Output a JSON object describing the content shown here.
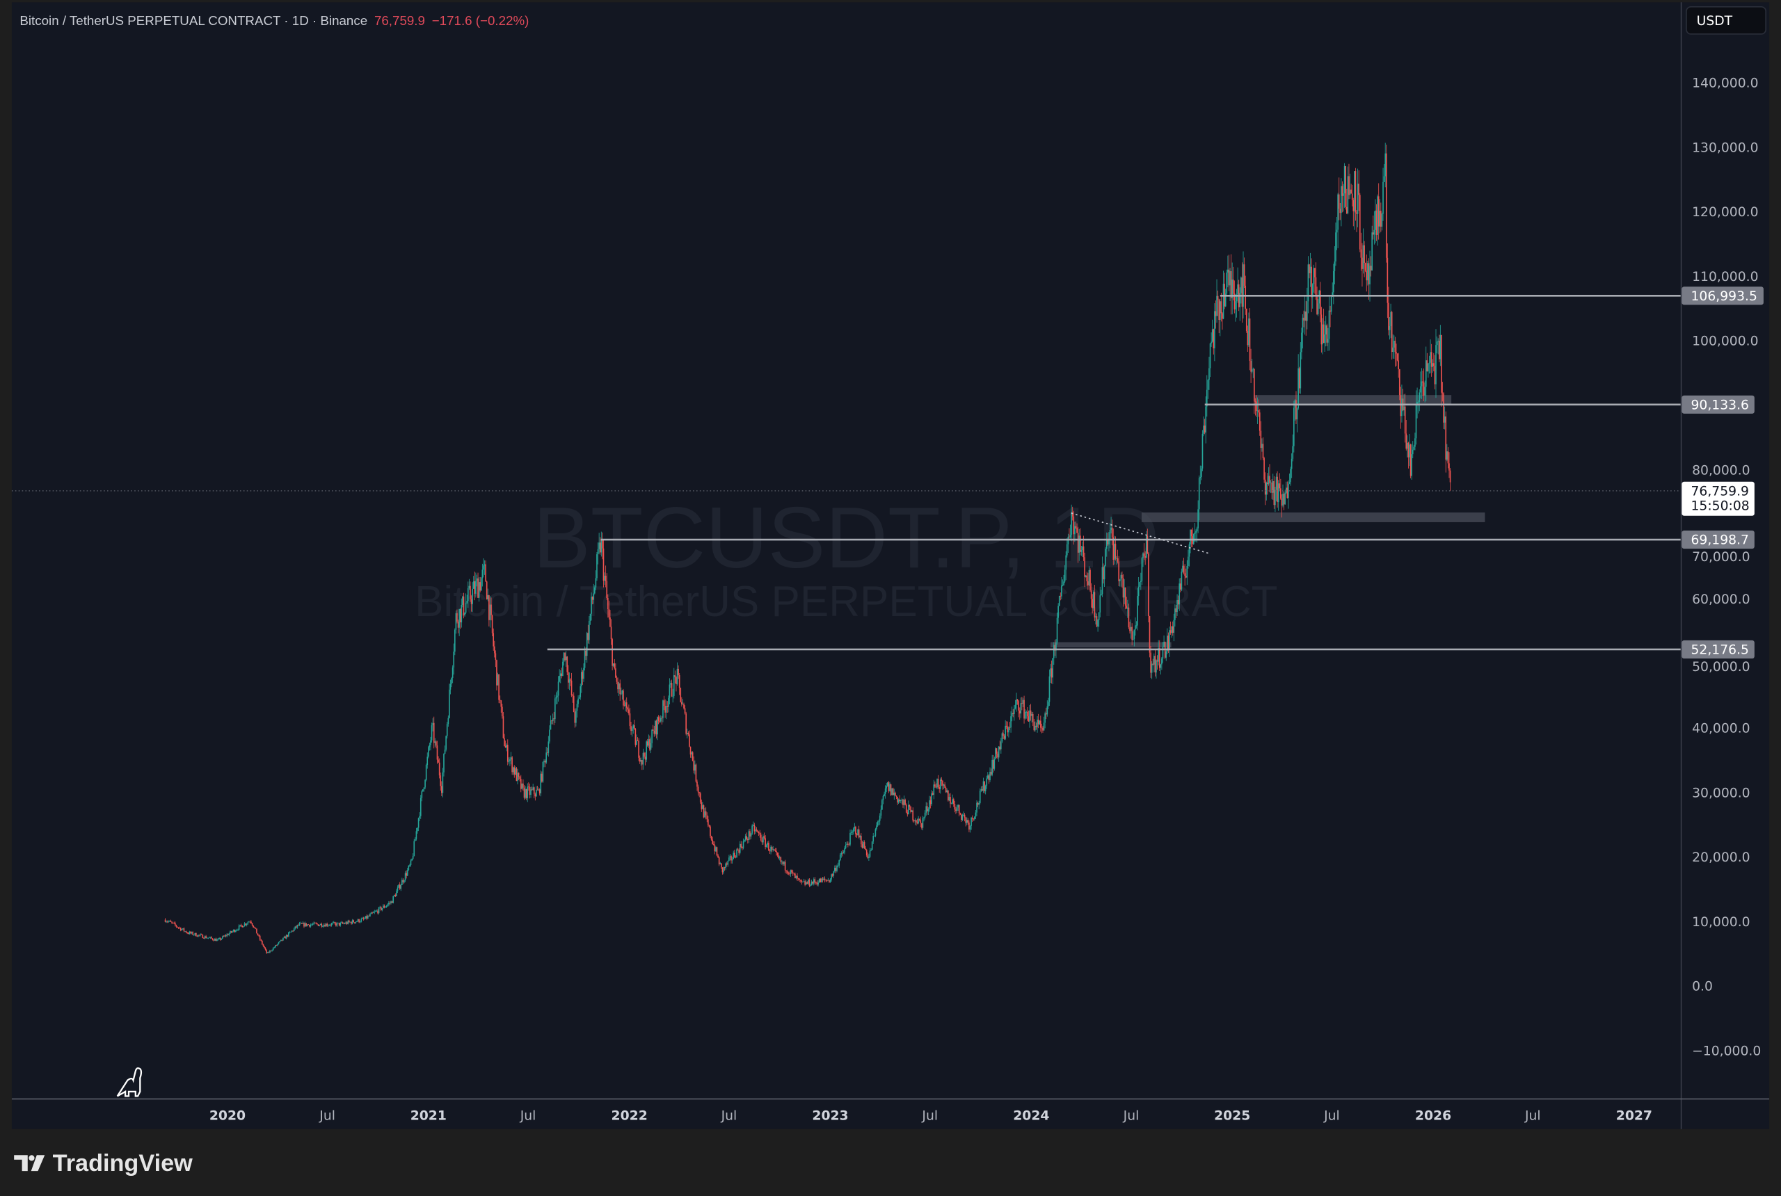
{
  "header": {
    "symbol_description": "Bitcoin / TetherUS PERPETUAL CONTRACT · 1D · Binance",
    "last_price": "76,759.9",
    "change": "−171.6 (−0.22%)"
  },
  "currency_button": "USDT",
  "watermark": {
    "ticker": "BTCUSDT.P, 1D",
    "description": "Bitcoin / TetherUS PERPETUAL CONTRACT"
  },
  "price_labels": {
    "current_price": "76,759.9",
    "countdown": "15:50:08",
    "levels": [
      "106,993.5",
      "90,133.6",
      "69,198.7",
      "52,176.5"
    ]
  },
  "brand": "TradingView",
  "colors": {
    "background": "#131722",
    "up": "#26a69a",
    "down": "#ef5350",
    "level_line": "#a9acb3",
    "level_label": "#787b86",
    "zone": "#4a4e59"
  },
  "icons": {
    "dino": "dinosaur-icon",
    "logo": "tradingview-logo-icon"
  },
  "chart_data": {
    "type": "candlestick",
    "title": "Bitcoin / TetherUS PERPETUAL CONTRACT · 1D · Binance",
    "ylim": [
      -15000,
      150000
    ],
    "y_ticks": [
      "140,000.0",
      "130,000.0",
      "120,000.0",
      "110,000.0",
      "100,000.0",
      "80,000.0",
      "70,000.0",
      "60,000.0",
      "50,000.0",
      "40,000.0",
      "30,000.0",
      "20,000.0",
      "10,000.0",
      "0.0",
      "−10,000.0"
    ],
    "y_tick_values": [
      140000,
      130000,
      120000,
      110000,
      100000,
      80000,
      70000,
      60000,
      50000,
      40000,
      30000,
      20000,
      10000,
      0,
      -10000
    ],
    "x_ticks": [
      {
        "label": "2020",
        "date": "2020-01-01",
        "year": true
      },
      {
        "label": "Jul",
        "date": "2020-07-01",
        "year": false
      },
      {
        "label": "2021",
        "date": "2021-01-01",
        "year": true
      },
      {
        "label": "Jul",
        "date": "2021-07-01",
        "year": false
      },
      {
        "label": "2022",
        "date": "2022-01-01",
        "year": true
      },
      {
        "label": "Jul",
        "date": "2022-07-01",
        "year": false
      },
      {
        "label": "2023",
        "date": "2023-01-01",
        "year": true
      },
      {
        "label": "Jul",
        "date": "2023-07-01",
        "year": false
      },
      {
        "label": "2024",
        "date": "2024-01-01",
        "year": true
      },
      {
        "label": "Jul",
        "date": "2024-07-01",
        "year": false
      },
      {
        "label": "2025",
        "date": "2025-01-01",
        "year": true
      },
      {
        "label": "Jul",
        "date": "2025-07-01",
        "year": false
      },
      {
        "label": "2026",
        "date": "2026-01-01",
        "year": true
      },
      {
        "label": "Jul",
        "date": "2026-07-01",
        "year": false
      },
      {
        "label": "2027",
        "date": "2027-01-01",
        "year": true
      }
    ],
    "price_path": [
      [
        "2019-09-10",
        10300
      ],
      [
        "2019-10-20",
        8300
      ],
      [
        "2019-12-15",
        7100
      ],
      [
        "2020-02-12",
        10200
      ],
      [
        "2020-03-13",
        5000
      ],
      [
        "2020-05-10",
        9500
      ],
      [
        "2020-07-25",
        9600
      ],
      [
        "2020-09-05",
        10300
      ],
      [
        "2020-10-25",
        13000
      ],
      [
        "2020-12-01",
        19000
      ],
      [
        "2021-01-08",
        40000
      ],
      [
        "2021-01-25",
        31000
      ],
      [
        "2021-02-20",
        57000
      ],
      [
        "2021-04-14",
        64000
      ],
      [
        "2021-05-20",
        37000
      ],
      [
        "2021-06-22",
        30000
      ],
      [
        "2021-07-20",
        30000
      ],
      [
        "2021-09-06",
        52000
      ],
      [
        "2021-09-25",
        41000
      ],
      [
        "2021-11-10",
        69000
      ],
      [
        "2021-12-05",
        48000
      ],
      [
        "2022-01-24",
        35000
      ],
      [
        "2022-03-28",
        48000
      ],
      [
        "2022-05-12",
        28000
      ],
      [
        "2022-06-18",
        17800
      ],
      [
        "2022-08-15",
        24400
      ],
      [
        "2022-09-30",
        19500
      ],
      [
        "2022-11-09",
        15800
      ],
      [
        "2022-12-31",
        16500
      ],
      [
        "2023-02-15",
        24500
      ],
      [
        "2023-03-12",
        20000
      ],
      [
        "2023-04-14",
        31000
      ],
      [
        "2023-06-15",
        25000
      ],
      [
        "2023-07-13",
        31800
      ],
      [
        "2023-09-11",
        25000
      ],
      [
        "2023-10-25",
        35000
      ],
      [
        "2023-12-08",
        44000
      ],
      [
        "2024-01-23",
        39000
      ],
      [
        "2024-03-14",
        73500
      ],
      [
        "2024-05-01",
        57000
      ],
      [
        "2024-05-21",
        71500
      ],
      [
        "2024-07-05",
        53500
      ],
      [
        "2024-07-29",
        70000
      ],
      [
        "2024-08-05",
        49000
      ],
      [
        "2024-09-06",
        53000
      ],
      [
        "2024-10-29",
        73000
      ],
      [
        "2024-11-22",
        99500
      ],
      [
        "2024-12-17",
        108000
      ],
      [
        "2025-01-20",
        109000
      ],
      [
        "2025-02-28",
        79000
      ],
      [
        "2025-04-07",
        74500
      ],
      [
        "2025-05-22",
        111000
      ],
      [
        "2025-06-22",
        99000
      ],
      [
        "2025-07-14",
        123000
      ],
      [
        "2025-08-14",
        124000
      ],
      [
        "2025-09-01",
        107000
      ],
      [
        "2025-10-06",
        126000
      ],
      [
        "2025-10-10",
        105000
      ],
      [
        "2025-11-21",
        80500
      ],
      [
        "2025-12-10",
        94000
      ],
      [
        "2026-01-14",
        97500
      ],
      [
        "2026-01-20",
        88000
      ],
      [
        "2026-02-01",
        76760
      ]
    ],
    "last_price": 76759.9,
    "horizontal_levels": [
      {
        "price": 106993.5,
        "from": "2024-12-10"
      },
      {
        "price": 90133.6,
        "from": "2024-11-12"
      },
      {
        "price": 69198.7,
        "from": "2021-11-10"
      },
      {
        "price": 52176.5,
        "from": "2021-08-05"
      }
    ],
    "zones": [
      {
        "from": "2024-07-20",
        "to": "2026-04-05",
        "low": 71900,
        "high": 73400
      },
      {
        "from": "2025-02-10",
        "to": "2026-02-03",
        "low": 90100,
        "high": 91600
      },
      {
        "from": "2024-02-05",
        "to": "2024-09-12",
        "low": 52500,
        "high": 53300
      }
    ],
    "trendline": {
      "from": [
        "2024-03-14",
        73300
      ],
      "to": [
        "2024-11-22",
        67000
      ],
      "style": "dotted"
    }
  }
}
